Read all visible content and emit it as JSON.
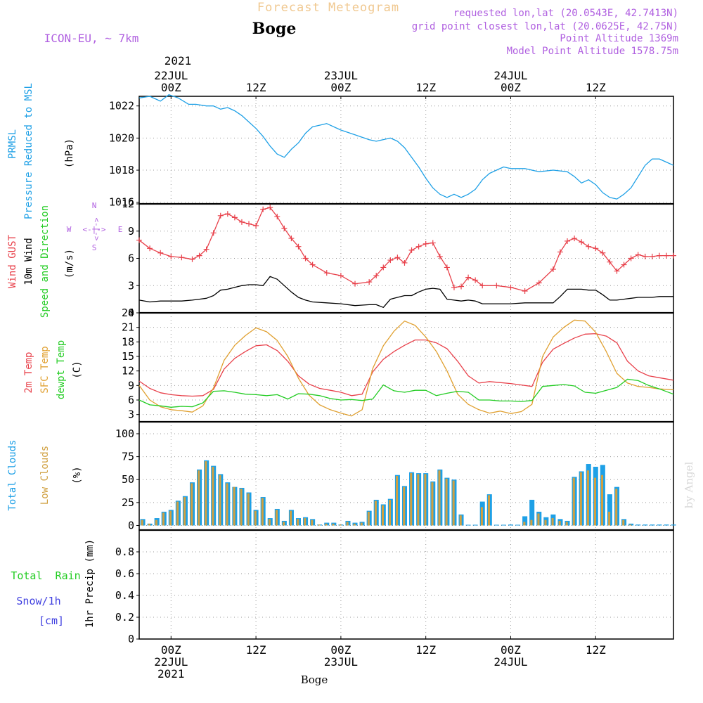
{
  "header": {
    "title": "Forecast Meteogram",
    "location": "Boge",
    "model": "ICON-EU, ~ 7km",
    "requested": "requested lon,lat (20.0543E, 42.7413N)",
    "grid_point": "grid point closest lon,lat (20.0625E, 42.75N)",
    "point_altitude": "Point Altitude 1369m",
    "model_altitude": "Model Point Altitude 1578.75m"
  },
  "time_axis": {
    "year": "2021",
    "major_ticks": [
      {
        "hour": 0,
        "top": [
          "22JUL",
          "00Z"
        ],
        "bottom": [
          "00Z",
          "22JUL",
          "2021"
        ]
      },
      {
        "hour": 12,
        "top": [
          "12Z"
        ],
        "bottom": [
          "12Z"
        ]
      },
      {
        "hour": 24,
        "top": [
          "23JUL",
          "00Z"
        ],
        "bottom": [
          "00Z",
          "23JUL"
        ]
      },
      {
        "hour": 36,
        "top": [
          "12Z"
        ],
        "bottom": [
          "12Z"
        ]
      },
      {
        "hour": 48,
        "top": [
          "24JUL",
          "00Z"
        ],
        "bottom": [
          "00Z",
          "24JUL"
        ]
      },
      {
        "hour": 60,
        "top": [
          "12Z"
        ],
        "bottom": [
          "12Z"
        ]
      }
    ],
    "start_hour": -4.5,
    "end_hour": 71,
    "footer_label": "Boge"
  },
  "watermark": "by Angel",
  "colors": {
    "pressure": "#1ea0e6",
    "gust": "#e8404a",
    "wind": "#000000",
    "temp2m": "#e8404a",
    "sfc": "#e0a030",
    "dewpt": "#22cc22",
    "total_clouds": "#1ea0e6",
    "low_clouds": "#d0a040",
    "rain": "#22cc22",
    "snow": "#4040e0",
    "header_purple": "#b060e0",
    "title_orange": "#f0c890"
  },
  "chart_data": [
    {
      "type": "line",
      "panel": "pressure",
      "labels": {
        "line1": "PRMSL",
        "line2": "Pressure Reduced to MSL",
        "unit": "(hPa)"
      },
      "ylim": [
        1015.9,
        1022.6
      ],
      "yticks": [
        1016,
        1018,
        1020,
        1022
      ],
      "x": [
        -4.5,
        -3,
        -1.5,
        -0.3,
        1,
        2.5,
        3.5,
        5,
        6,
        7,
        8,
        9,
        10,
        11,
        12,
        13,
        14,
        15,
        16,
        17,
        18,
        19,
        20,
        21,
        22,
        24,
        26,
        28,
        29,
        31,
        32,
        33,
        34,
        35,
        36,
        37,
        38,
        39,
        40,
        41,
        42,
        43,
        44,
        45,
        46,
        47,
        48,
        50,
        52,
        54,
        56,
        57,
        58,
        59,
        60,
        61,
        62,
        63,
        64,
        65,
        66,
        67,
        68,
        69,
        70,
        71
      ],
      "series": [
        {
          "name": "PRMSL",
          "values": [
            1022.5,
            1022.6,
            1022.3,
            1022.7,
            1022.5,
            1022.1,
            1022.1,
            1022.0,
            1022.0,
            1021.8,
            1021.9,
            1021.7,
            1021.4,
            1021.0,
            1020.6,
            1020.1,
            1019.5,
            1019.0,
            1018.8,
            1019.3,
            1019.7,
            1020.3,
            1020.7,
            1020.8,
            1020.9,
            1020.5,
            1020.2,
            1019.9,
            1019.8,
            1020.0,
            1019.8,
            1019.4,
            1018.8,
            1018.2,
            1017.5,
            1016.9,
            1016.5,
            1016.3,
            1016.5,
            1016.3,
            1016.5,
            1016.8,
            1017.4,
            1017.8,
            1018.0,
            1018.2,
            1018.1,
            1018.1,
            1017.9,
            1018.0,
            1017.9,
            1017.6,
            1017.2,
            1017.4,
            1017.1,
            1016.6,
            1016.3,
            1016.2,
            1016.5,
            1016.9,
            1017.6,
            1018.3,
            1018.7,
            1018.7,
            1018.5,
            1018.3
          ]
        }
      ]
    },
    {
      "type": "line",
      "panel": "wind",
      "labels": {
        "gust": "Wind GUST",
        "wind": "10m Wind",
        "dir": "Speed and Direction",
        "unit": "(m/s)",
        "compass_n": "N",
        "compass_s": "S",
        "compass_w": "W",
        "compass_e": "E",
        "compass_arrow": "<-|->"
      },
      "ylim": [
        0,
        12
      ],
      "yticks": [
        0,
        3,
        6,
        9,
        12
      ],
      "x": [
        -4.5,
        -3,
        -1.5,
        0,
        1.5,
        3,
        4,
        5,
        6,
        7,
        8,
        9,
        10,
        11,
        12,
        13,
        14,
        15,
        16,
        17,
        18,
        19,
        20,
        22,
        24,
        26,
        28,
        29,
        30,
        31,
        32,
        33,
        34,
        35,
        36,
        37,
        38,
        39,
        40,
        41,
        42,
        43,
        44,
        46,
        48,
        50,
        52,
        54,
        55,
        56,
        57,
        58,
        59,
        60,
        61,
        62,
        63,
        64,
        65,
        66,
        67,
        68,
        69,
        70,
        71
      ],
      "series": [
        {
          "name": "Wind GUST",
          "values": [
            8.0,
            7.1,
            6.6,
            6.2,
            6.1,
            5.9,
            6.3,
            7.0,
            8.8,
            10.7,
            10.9,
            10.5,
            10.0,
            9.8,
            9.6,
            11.4,
            11.6,
            10.6,
            9.3,
            8.2,
            7.3,
            6.0,
            5.3,
            4.4,
            4.1,
            3.2,
            3.4,
            4.1,
            5.0,
            5.8,
            6.1,
            5.5,
            6.9,
            7.3,
            7.6,
            7.7,
            6.2,
            5.0,
            2.8,
            2.9,
            3.9,
            3.6,
            3.0,
            3.0,
            2.8,
            2.4,
            3.3,
            4.8,
            6.7,
            7.9,
            8.2,
            7.8,
            7.3,
            7.1,
            6.6,
            5.6,
            4.6,
            5.3,
            6.0,
            6.4,
            6.2,
            6.2,
            6.3,
            6.3,
            6.3
          ]
        },
        {
          "name": "10m Wind",
          "values": [
            1.4,
            1.2,
            1.3,
            1.3,
            1.3,
            1.4,
            1.5,
            1.6,
            1.9,
            2.5,
            2.6,
            2.8,
            3.0,
            3.1,
            3.1,
            3.0,
            4.0,
            3.7,
            3.0,
            2.3,
            1.7,
            1.4,
            1.2,
            1.1,
            1.0,
            0.8,
            0.9,
            0.9,
            0.6,
            1.5,
            1.7,
            1.9,
            1.9,
            2.3,
            2.6,
            2.7,
            2.6,
            1.5,
            1.4,
            1.3,
            1.4,
            1.3,
            1.0,
            1.0,
            1.0,
            1.1,
            1.1,
            1.1,
            1.8,
            2.6,
            2.6,
            2.6,
            2.5,
            2.5,
            2.0,
            1.4,
            1.4,
            1.5,
            1.6,
            1.7,
            1.7,
            1.7,
            1.8,
            1.8,
            1.8
          ]
        }
      ]
    },
    {
      "type": "line",
      "panel": "temperature",
      "labels": {
        "temp2m": "2m Temp",
        "sfc": "SFC Temp",
        "dewpt": "dewpt Temp",
        "unit": "(C)"
      },
      "ylim": [
        1.5,
        24
      ],
      "yticks": [
        3,
        6,
        9,
        12,
        15,
        18,
        21,
        24
      ],
      "x": [
        -4.5,
        -3,
        -1.5,
        0,
        1.5,
        3,
        4.5,
        6,
        7.5,
        9,
        10.5,
        12,
        13.5,
        15,
        16.5,
        18,
        19.5,
        21,
        22.5,
        24,
        25.5,
        27,
        28.5,
        30,
        31.5,
        33,
        34.5,
        36,
        37.5,
        39,
        40.5,
        42,
        43.5,
        45,
        46.5,
        48,
        49.5,
        51,
        52.5,
        54,
        55.5,
        57,
        58.5,
        60,
        61.5,
        63,
        64.5,
        66,
        67.5,
        69,
        71
      ],
      "series": [
        {
          "name": "2m Temp",
          "values": [
            9.9,
            8.4,
            7.5,
            7.1,
            6.9,
            6.8,
            6.9,
            8.2,
            12.4,
            14.6,
            16.0,
            17.2,
            17.4,
            16.2,
            14.0,
            11.0,
            9.3,
            8.4,
            8.0,
            7.6,
            6.9,
            7.2,
            11.8,
            14.4,
            16.0,
            17.3,
            18.4,
            18.4,
            17.8,
            16.6,
            14.0,
            11.0,
            9.5,
            9.8,
            9.6,
            9.4,
            9.1,
            8.8,
            13.8,
            16.5,
            17.7,
            18.8,
            19.6,
            19.7,
            19.2,
            17.8,
            14.0,
            12.0,
            11.0,
            10.6,
            10.1
          ]
        },
        {
          "name": "SFC Temp",
          "values": [
            9.0,
            6.0,
            4.6,
            4.0,
            3.8,
            3.5,
            4.8,
            8.5,
            14.2,
            17.3,
            19.3,
            20.9,
            20.1,
            18.3,
            15.0,
            10.5,
            7.0,
            5.0,
            4.0,
            3.3,
            2.7,
            4.0,
            12.5,
            17.2,
            20.2,
            22.3,
            21.4,
            19.0,
            16.0,
            12.0,
            7.2,
            5.1,
            4.0,
            3.3,
            3.7,
            3.2,
            3.6,
            5.1,
            15.0,
            19.0,
            21.0,
            22.5,
            22.3,
            20.0,
            16.0,
            11.5,
            9.5,
            8.8,
            8.6,
            8.3,
            8.1
          ]
        },
        {
          "name": "dewpt Temp",
          "values": [
            6.0,
            5.0,
            4.8,
            4.5,
            4.7,
            4.6,
            5.4,
            7.8,
            7.9,
            7.6,
            7.2,
            7.1,
            6.9,
            7.1,
            6.2,
            7.3,
            7.2,
            6.9,
            6.3,
            6.0,
            6.1,
            5.9,
            6.2,
            9.1,
            7.9,
            7.6,
            8.0,
            8.0,
            6.9,
            7.4,
            7.8,
            7.6,
            6.0,
            6.0,
            5.8,
            5.8,
            5.7,
            5.9,
            8.8,
            9.0,
            9.2,
            8.9,
            7.6,
            7.4,
            8.0,
            8.6,
            10.3,
            10.0,
            9.0,
            8.3,
            7.2
          ]
        }
      ]
    },
    {
      "type": "bar",
      "panel": "clouds",
      "labels": {
        "total": "Total Clouds",
        "low": "Low Clouds",
        "unit": "(%)"
      },
      "ylim": [
        -5,
        113
      ],
      "yticks": [
        0,
        25,
        50,
        75,
        100
      ],
      "x": [
        -4,
        -3,
        -2,
        -1,
        0,
        1,
        2,
        3,
        4,
        5,
        6,
        7,
        8,
        9,
        10,
        11,
        12,
        13,
        14,
        15,
        16,
        17,
        18,
        19,
        20,
        21,
        22,
        23,
        24,
        25,
        26,
        27,
        28,
        29,
        30,
        31,
        32,
        33,
        34,
        35,
        36,
        37,
        38,
        39,
        40,
        41,
        42,
        43,
        44,
        45,
        46,
        47,
        48,
        49,
        50,
        51,
        52,
        53,
        54,
        55,
        56,
        57,
        58,
        59,
        60,
        61,
        62,
        63,
        64,
        65,
        66,
        67,
        68,
        69,
        70,
        71
      ],
      "series": [
        {
          "name": "Total Clouds",
          "values": [
            7,
            2,
            8,
            15,
            17,
            27,
            32,
            47,
            61,
            71,
            65,
            56,
            47,
            42,
            41,
            36,
            17,
            31,
            8,
            18,
            5,
            17,
            8,
            9,
            7,
            1,
            3,
            3,
            1,
            5,
            3,
            4,
            16,
            28,
            23,
            29,
            55,
            43,
            58,
            57,
            57,
            48,
            61,
            52,
            50,
            12,
            0,
            0,
            26,
            34,
            0,
            0,
            1,
            0,
            10,
            28,
            15,
            9,
            12,
            7,
            5,
            53,
            59,
            67,
            64,
            66,
            34,
            42,
            7,
            2,
            1,
            1,
            1,
            1,
            1,
            1
          ]
        },
        {
          "name": "Low Clouds",
          "values": [
            6,
            2,
            6,
            14,
            16,
            26,
            31,
            46,
            60,
            70,
            64,
            55,
            46,
            42,
            40,
            35,
            16,
            30,
            7,
            17,
            4,
            16,
            7,
            8,
            6,
            1,
            2,
            2,
            1,
            4,
            2,
            3,
            15,
            27,
            22,
            28,
            54,
            42,
            57,
            56,
            56,
            47,
            60,
            51,
            49,
            11,
            0,
            0,
            20,
            33,
            0,
            0,
            0,
            0,
            4,
            6,
            13,
            6,
            8,
            5,
            4,
            52,
            58,
            60,
            52,
            55,
            15,
            40,
            6,
            1,
            0,
            0,
            0,
            0,
            0,
            0
          ]
        }
      ]
    },
    {
      "type": "bar",
      "panel": "precip",
      "labels": {
        "rain": "Total  Rain",
        "snow": "Snow/1h",
        "cm": "[cm]",
        "unit": "1hr Precip (mm)"
      },
      "ylim": [
        0,
        1.0
      ],
      "yticks": [
        0,
        0.2,
        0.4,
        0.6,
        0.8
      ],
      "ytick_labels": [
        "0",
        "0.2",
        "0.4",
        "0.6",
        "0.8"
      ],
      "x": [],
      "series": [
        {
          "name": "Total Rain",
          "values": []
        },
        {
          "name": "Snow/1h",
          "values": []
        }
      ]
    }
  ]
}
